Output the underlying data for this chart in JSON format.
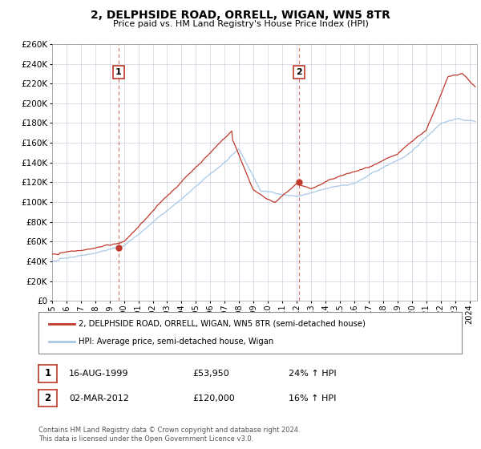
{
  "title": "2, DELPHSIDE ROAD, ORRELL, WIGAN, WN5 8TR",
  "subtitle": "Price paid vs. HM Land Registry's House Price Index (HPI)",
  "sale1_date": "16-AUG-1999",
  "sale1_price": 53950,
  "sale1_hpi": "24% ↑ HPI",
  "sale1_year": 1999.62,
  "sale2_date": "02-MAR-2012",
  "sale2_price": 120000,
  "sale2_hpi": "16% ↑ HPI",
  "sale2_year": 2012.17,
  "legend_line1": "2, DELPHSIDE ROAD, ORRELL, WIGAN, WN5 8TR (semi-detached house)",
  "legend_line2": "HPI: Average price, semi-detached house, Wigan",
  "footer1": "Contains HM Land Registry data © Crown copyright and database right 2024.",
  "footer2": "This data is licensed under the Open Government Licence v3.0.",
  "hpi_color": "#a8c8e8",
  "price_color": "#c0392b",
  "dashed_color": "#c0392b",
  "background_color": "#ffffff",
  "grid_color": "#d0d0e0",
  "ylim": [
    0,
    260000
  ],
  "xlim_start": 1995,
  "xlim_end": 2024.5,
  "ytick_step": 20000,
  "sale1_price_str": "£53,950",
  "sale2_price_str": "£120,000"
}
